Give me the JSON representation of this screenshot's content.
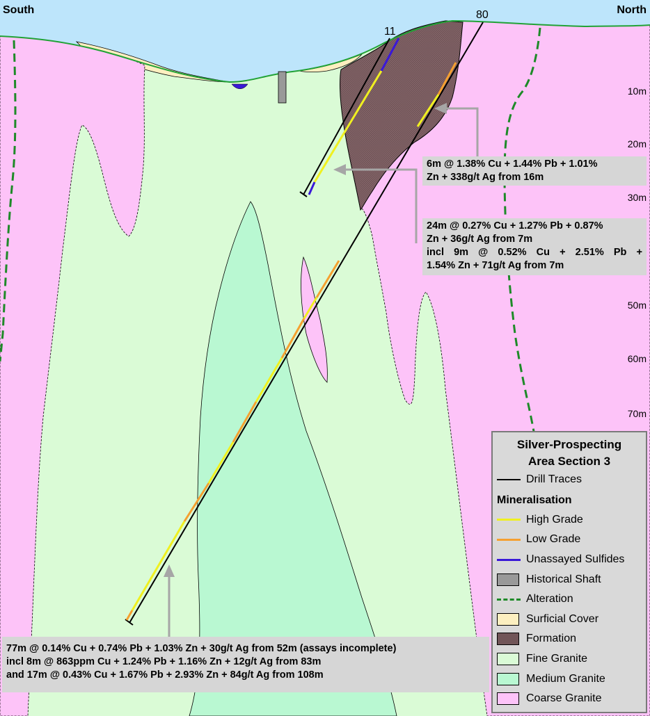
{
  "section": {
    "south_label": "South",
    "north_label": "North",
    "drill_hole_labels": [
      "11",
      "80"
    ],
    "depth_labels": [
      "10m",
      "20m",
      "30m",
      "50m",
      "60m",
      "70m"
    ]
  },
  "callouts": [
    {
      "lines": [
        "6m @ 1.38% Cu + 1.44% Pb + 1.01%",
        "Zn + 338g/t Ag from 16m"
      ]
    },
    {
      "lines": [
        "24m @ 0.27% Cu + 1.27% Pb + 0.87%",
        "Zn + 36g/t Ag from 7m",
        "incl 9m @ 0.52% Cu + 2.51% Pb +",
        "1.54% Zn + 71g/t Ag from 7m"
      ]
    },
    {
      "lines": [
        "77m @ 0.14% Cu + 0.74% Pb + 1.03% Zn + 30g/t Ag from 52m (assays incomplete)",
        "incl 8m @ 863ppm Cu + 1.24% Pb + 1.16% Zn + 12g/t Ag from 83m",
        "and 17m @ 0.43% Cu + 1.67% Pb + 2.93% Zn + 84g/t Ag from 108m"
      ]
    }
  ],
  "legend": {
    "title_line1": "Silver-Prospecting",
    "title_line2": "Area Section 3",
    "drill_traces": "Drill Traces",
    "mineralisation_heading": "Mineralisation",
    "items": [
      {
        "label": "High Grade",
        "kind": "line",
        "color": "#f0f020"
      },
      {
        "label": "Low Grade",
        "kind": "line",
        "color": "#f5a030"
      },
      {
        "label": "Unassayed Sulfides",
        "kind": "line",
        "color": "#3a18d8"
      },
      {
        "label": "Historical Shaft",
        "kind": "box",
        "color": "#999999"
      },
      {
        "label": "Alteration",
        "kind": "dash",
        "color": "#1e8a28"
      },
      {
        "label": "Surficial Cover",
        "kind": "box",
        "color": "#fcefc0"
      },
      {
        "label": "Formation",
        "kind": "box",
        "color": "#715558"
      },
      {
        "label": "Fine Granite",
        "kind": "box",
        "color": "#dafbd6"
      },
      {
        "label": "Medium Granite",
        "kind": "box",
        "color": "#b9f8d2"
      },
      {
        "label": "Coarse Granite",
        "kind": "box",
        "color": "#fdc3f8"
      }
    ]
  },
  "colors": {
    "sky": "#bde5fb",
    "fine_granite": "#dafbd6",
    "medium_granite": "#b9f8d2",
    "coarse_granite": "#fdc3f8",
    "formation": "#715558",
    "surficial_cover": "#fcefc0",
    "high_grade": "#f0f020",
    "low_grade": "#f5a030",
    "unassayed": "#3a18d8",
    "alteration": "#1e8a28",
    "shaft": "#999999",
    "callout_bg": "#d6d6d6"
  }
}
